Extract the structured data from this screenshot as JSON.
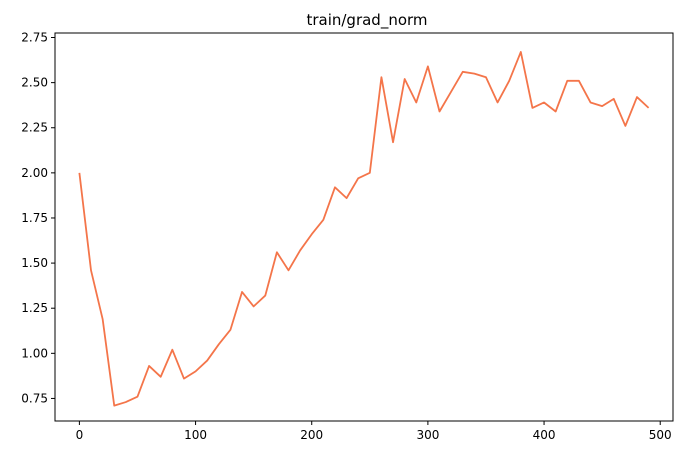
{
  "chart_data": {
    "type": "line",
    "title": "train/grad_norm",
    "xlabel": "",
    "ylabel": "",
    "xlim": [
      -21,
      511
    ],
    "ylim": [
      0.625,
      2.775
    ],
    "xticks": [
      0,
      100,
      200,
      300,
      400,
      500
    ],
    "yticks": [
      0.75,
      1.0,
      1.25,
      1.5,
      1.75,
      2.0,
      2.25,
      2.5,
      2.75
    ],
    "ytick_labels": [
      "0.75",
      "1.00",
      "1.25",
      "1.50",
      "1.75",
      "2.00",
      "2.25",
      "2.50",
      "2.75"
    ],
    "grid": false,
    "line_color": "#f4754a",
    "series": [
      {
        "x": [
          0,
          10,
          20,
          30,
          40,
          50,
          60,
          70,
          80,
          90,
          100,
          110,
          120,
          130,
          140,
          150,
          160,
          170,
          180,
          190,
          200,
          210,
          220,
          230,
          240,
          250,
          260,
          270,
          280,
          290,
          300,
          310,
          320,
          330,
          340,
          350,
          360,
          370,
          380,
          390,
          400,
          410,
          420,
          430,
          440,
          450,
          460,
          470,
          480,
          490
        ],
        "y": [
          2.0,
          1.46,
          1.19,
          0.71,
          0.73,
          0.76,
          0.93,
          0.87,
          1.02,
          0.86,
          0.9,
          0.96,
          1.05,
          1.13,
          1.34,
          1.26,
          1.32,
          1.56,
          1.46,
          1.57,
          1.66,
          1.74,
          1.92,
          1.86,
          1.97,
          2.0,
          2.53,
          2.17,
          2.52,
          2.39,
          2.59,
          2.34,
          2.45,
          2.56,
          2.55,
          2.53,
          2.39,
          2.51,
          2.67,
          2.36,
          2.39,
          2.34,
          2.51,
          2.51,
          2.39,
          2.37,
          2.41,
          2.26,
          2.42,
          2.36
        ]
      }
    ]
  }
}
